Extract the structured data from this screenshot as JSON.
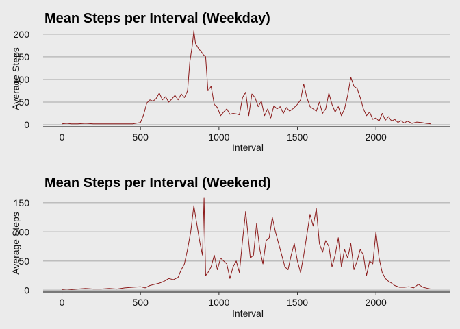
{
  "chart_data": [
    {
      "type": "line",
      "title": "Mean Steps per Interval (Weekday)",
      "xlabel": "Interval",
      "ylabel": "Average Steps",
      "xlim": [
        -120,
        2470
      ],
      "ylim": [
        -3,
        215
      ],
      "xticks": [
        0,
        500,
        1000,
        1500,
        2000
      ],
      "yticks": [
        0,
        50,
        100,
        150,
        200
      ],
      "grid": "horizontal",
      "line_color": "#8b1a1a",
      "x": [
        0,
        30,
        60,
        100,
        150,
        200,
        250,
        300,
        350,
        400,
        450,
        500,
        520,
        540,
        560,
        580,
        600,
        620,
        640,
        660,
        680,
        700,
        720,
        740,
        760,
        780,
        800,
        815,
        830,
        840,
        850,
        870,
        890,
        900,
        915,
        930,
        950,
        970,
        990,
        1010,
        1030,
        1050,
        1070,
        1090,
        1110,
        1130,
        1150,
        1170,
        1190,
        1210,
        1230,
        1250,
        1270,
        1290,
        1310,
        1330,
        1350,
        1370,
        1390,
        1410,
        1430,
        1450,
        1470,
        1500,
        1520,
        1540,
        1560,
        1580,
        1600,
        1620,
        1640,
        1660,
        1680,
        1700,
        1720,
        1740,
        1760,
        1780,
        1800,
        1820,
        1840,
        1860,
        1880,
        1900,
        1920,
        1940,
        1960,
        1980,
        2000,
        2020,
        2040,
        2060,
        2080,
        2100,
        2120,
        2140,
        2160,
        2180,
        2200,
        2230,
        2260,
        2290,
        2320,
        2350
      ],
      "y": [
        2,
        3,
        2,
        2,
        3,
        2,
        2,
        2,
        2,
        2,
        2,
        5,
        22,
        48,
        55,
        52,
        58,
        70,
        55,
        62,
        50,
        57,
        65,
        55,
        68,
        60,
        75,
        140,
        175,
        208,
        180,
        168,
        160,
        155,
        150,
        75,
        85,
        45,
        38,
        20,
        28,
        35,
        23,
        25,
        24,
        22,
        60,
        72,
        20,
        68,
        60,
        40,
        52,
        20,
        35,
        15,
        42,
        35,
        40,
        25,
        38,
        30,
        35,
        45,
        55,
        90,
        60,
        40,
        35,
        30,
        50,
        25,
        35,
        70,
        45,
        28,
        40,
        20,
        35,
        65,
        105,
        85,
        80,
        60,
        35,
        20,
        28,
        12,
        15,
        8,
        25,
        10,
        18,
        8,
        12,
        5,
        9,
        4,
        8,
        3,
        6,
        5,
        3,
        2
      ]
    },
    {
      "type": "line",
      "title": "Mean Steps per Interval (Weekend)",
      "xlabel": "Interval",
      "ylabel": "Average Steps",
      "xlim": [
        -120,
        2470
      ],
      "ylim": [
        -2,
        165
      ],
      "xticks": [
        0,
        500,
        1000,
        1500,
        2000
      ],
      "yticks": [
        0,
        50,
        100,
        150
      ],
      "grid": "horizontal",
      "line_color": "#8b1a1a",
      "x": [
        0,
        30,
        60,
        100,
        150,
        200,
        250,
        300,
        350,
        400,
        450,
        500,
        530,
        560,
        590,
        620,
        650,
        680,
        710,
        740,
        760,
        780,
        800,
        820,
        840,
        855,
        870,
        880,
        895,
        905,
        915,
        930,
        950,
        970,
        990,
        1010,
        1030,
        1050,
        1070,
        1090,
        1110,
        1130,
        1150,
        1170,
        1200,
        1220,
        1240,
        1260,
        1280,
        1300,
        1320,
        1340,
        1360,
        1380,
        1400,
        1420,
        1440,
        1460,
        1480,
        1500,
        1520,
        1540,
        1560,
        1580,
        1600,
        1620,
        1640,
        1660,
        1680,
        1700,
        1720,
        1740,
        1760,
        1780,
        1800,
        1820,
        1840,
        1860,
        1880,
        1900,
        1920,
        1940,
        1960,
        1980,
        2000,
        2020,
        2040,
        2060,
        2080,
        2100,
        2120,
        2150,
        2180,
        2210,
        2240,
        2270,
        2300,
        2330,
        2350
      ],
      "y": [
        1,
        2,
        1,
        2,
        3,
        2,
        2,
        3,
        2,
        4,
        5,
        6,
        4,
        8,
        10,
        12,
        15,
        20,
        18,
        22,
        35,
        45,
        70,
        100,
        145,
        120,
        95,
        80,
        60,
        158,
        25,
        30,
        40,
        60,
        35,
        55,
        50,
        45,
        20,
        40,
        50,
        30,
        85,
        135,
        55,
        60,
        115,
        70,
        45,
        85,
        90,
        125,
        100,
        80,
        60,
        40,
        35,
        60,
        80,
        50,
        30,
        60,
        95,
        130,
        110,
        140,
        80,
        65,
        85,
        75,
        40,
        60,
        90,
        40,
        70,
        55,
        80,
        35,
        50,
        70,
        60,
        25,
        50,
        45,
        100,
        55,
        30,
        20,
        15,
        12,
        8,
        5,
        5,
        6,
        4,
        10,
        5,
        3,
        2
      ]
    }
  ]
}
